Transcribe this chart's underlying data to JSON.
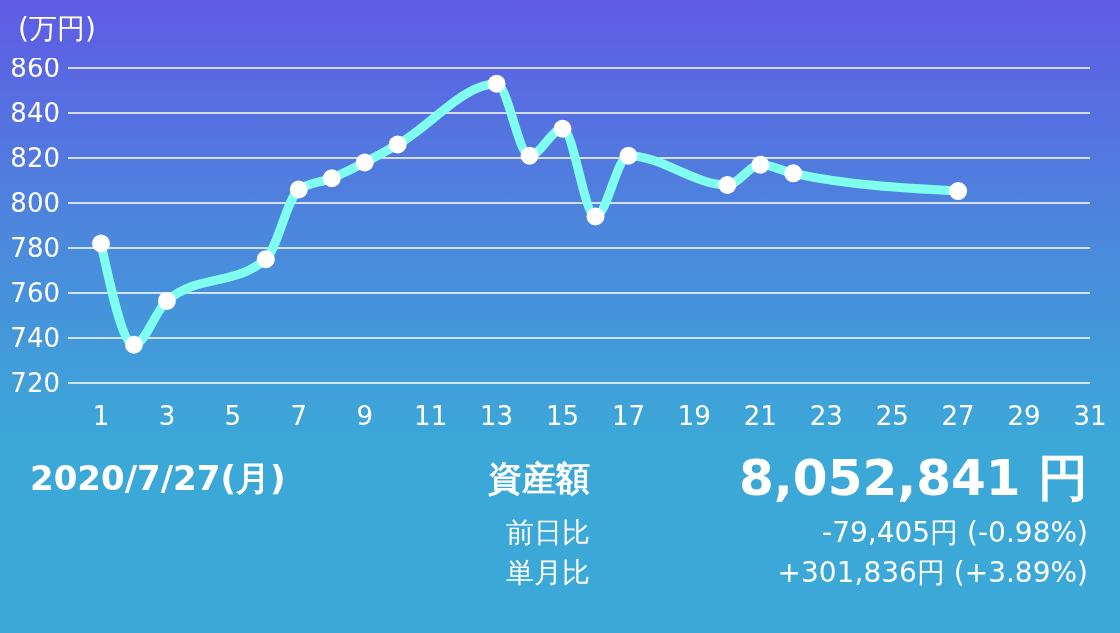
{
  "chart_data": {
    "type": "line",
    "ylabel": "(万円)",
    "x": [
      1,
      2,
      3,
      6,
      7,
      8,
      9,
      10,
      13,
      14,
      15,
      16,
      17,
      20,
      21,
      22,
      27
    ],
    "series": [
      {
        "color": "#80fff0",
        "values": [
          782,
          737,
          756.5,
          775,
          806,
          811,
          818,
          826,
          853,
          821,
          833,
          794,
          821,
          808,
          817,
          813.2,
          805.3
        ]
      }
    ],
    "xlim": [
      0,
      31
    ],
    "xticks": [
      1,
      3,
      5,
      7,
      9,
      11,
      13,
      15,
      17,
      19,
      21,
      23,
      25,
      27,
      29,
      31
    ],
    "ylim": [
      720,
      860
    ],
    "yticks": [
      720,
      740,
      760,
      780,
      800,
      820,
      840,
      860
    ],
    "grid": "y",
    "marker": "circle",
    "line_style": "solid",
    "annotations": [
      "2020/7/27(月)",
      "資産額",
      "8,052,841 円",
      "前日比",
      "-79,405円 (-0.98%)",
      "単月比",
      "+301,836円 (+3.89%)"
    ]
  }
}
